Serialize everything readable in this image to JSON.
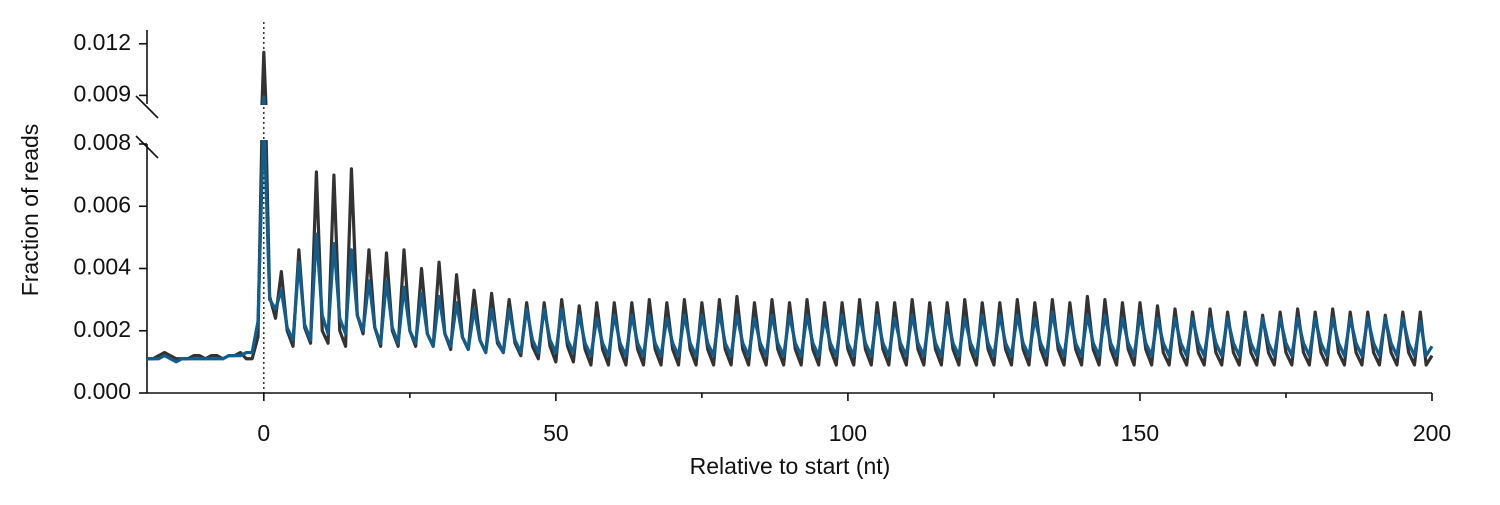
{
  "chart_data": {
    "type": "line",
    "xlabel": "Relative to start (nt)",
    "ylabel": "Fraction of reads",
    "x": [
      -20,
      -19,
      -18,
      -17,
      -16,
      -15,
      -14,
      -13,
      -12,
      -11,
      -10,
      -9,
      -8,
      -7,
      -6,
      -5,
      -4,
      -3,
      -2,
      -1,
      0,
      1,
      2,
      3,
      4,
      5,
      6,
      7,
      8,
      9,
      10,
      11,
      12,
      13,
      14,
      15,
      16,
      17,
      18,
      19,
      20,
      21,
      22,
      23,
      24,
      25,
      26,
      27,
      28,
      29,
      30,
      31,
      32,
      33,
      34,
      35,
      36,
      37,
      38,
      39,
      40,
      41,
      42,
      43,
      44,
      45,
      46,
      47,
      48,
      49,
      50,
      51,
      52,
      53,
      54,
      55,
      56,
      57,
      58,
      59,
      60,
      61,
      62,
      63,
      64,
      65,
      66,
      67,
      68,
      69,
      70,
      71,
      72,
      73,
      74,
      75,
      76,
      77,
      78,
      79,
      80,
      81,
      82,
      83,
      84,
      85,
      86,
      87,
      88,
      89,
      90,
      91,
      92,
      93,
      94,
      95,
      96,
      97,
      98,
      99,
      100,
      101,
      102,
      103,
      104,
      105,
      106,
      107,
      108,
      109,
      110,
      111,
      112,
      113,
      114,
      115,
      116,
      117,
      118,
      119,
      120,
      121,
      122,
      123,
      124,
      125,
      126,
      127,
      128,
      129,
      130,
      131,
      132,
      133,
      134,
      135,
      136,
      137,
      138,
      139,
      140,
      141,
      142,
      143,
      144,
      145,
      146,
      147,
      148,
      149,
      150,
      151,
      152,
      153,
      154,
      155,
      156,
      157,
      158,
      159,
      160,
      161,
      162,
      163,
      164,
      165,
      166,
      167,
      168,
      169,
      170,
      171,
      172,
      173,
      174,
      175,
      176,
      177,
      178,
      179,
      180,
      181,
      182,
      183,
      184,
      185,
      186,
      187,
      188,
      189,
      190,
      191,
      192,
      193,
      194,
      195,
      196,
      197,
      198,
      199,
      200
    ],
    "series": [
      {
        "color": "#333333",
        "values": [
          0.0011,
          0.0011,
          0.0012,
          0.0013,
          0.0012,
          0.0011,
          0.0011,
          0.0011,
          0.0012,
          0.0012,
          0.0011,
          0.0012,
          0.0012,
          0.0011,
          0.0012,
          0.0012,
          0.0013,
          0.0011,
          0.0011,
          0.0018,
          0.0115,
          0.0031,
          0.0024,
          0.0039,
          0.002,
          0.0015,
          0.0046,
          0.0021,
          0.0016,
          0.0071,
          0.002,
          0.0016,
          0.007,
          0.002,
          0.0015,
          0.0072,
          0.0025,
          0.0019,
          0.0046,
          0.0021,
          0.0015,
          0.0045,
          0.002,
          0.0015,
          0.0046,
          0.002,
          0.0015,
          0.004,
          0.0019,
          0.0015,
          0.0042,
          0.0019,
          0.0014,
          0.0038,
          0.0018,
          0.0014,
          0.0033,
          0.0017,
          0.0013,
          0.0032,
          0.0016,
          0.0013,
          0.003,
          0.0016,
          0.0012,
          0.0029,
          0.0015,
          0.0011,
          0.0029,
          0.0015,
          0.001,
          0.003,
          0.0015,
          0.001,
          0.0028,
          0.0014,
          0.0009,
          0.0029,
          0.0014,
          0.0009,
          0.0029,
          0.0014,
          0.0009,
          0.0029,
          0.0014,
          0.0009,
          0.003,
          0.0014,
          0.0009,
          0.0029,
          0.0014,
          0.0009,
          0.003,
          0.0014,
          0.0009,
          0.0029,
          0.0014,
          0.0009,
          0.003,
          0.0014,
          0.0009,
          0.0031,
          0.0014,
          0.0009,
          0.0029,
          0.0014,
          0.0009,
          0.003,
          0.0014,
          0.0009,
          0.0029,
          0.0014,
          0.0009,
          0.003,
          0.0014,
          0.0009,
          0.0029,
          0.0014,
          0.0009,
          0.0029,
          0.0014,
          0.0009,
          0.003,
          0.0014,
          0.0009,
          0.0029,
          0.0014,
          0.0009,
          0.0029,
          0.0014,
          0.0009,
          0.003,
          0.0014,
          0.0009,
          0.0029,
          0.0014,
          0.0009,
          0.0029,
          0.0014,
          0.0009,
          0.003,
          0.0014,
          0.0009,
          0.0029,
          0.0014,
          0.0009,
          0.0029,
          0.0014,
          0.0009,
          0.003,
          0.0014,
          0.0009,
          0.0029,
          0.0014,
          0.0009,
          0.003,
          0.0014,
          0.0009,
          0.0029,
          0.0014,
          0.0009,
          0.0031,
          0.0014,
          0.0009,
          0.003,
          0.0014,
          0.0009,
          0.0029,
          0.0014,
          0.0009,
          0.0029,
          0.0014,
          0.0009,
          0.0028,
          0.0013,
          0.0009,
          0.0027,
          0.0013,
          0.0009,
          0.0026,
          0.0013,
          0.0009,
          0.0027,
          0.0013,
          0.0009,
          0.0026,
          0.0013,
          0.0009,
          0.0026,
          0.0013,
          0.0009,
          0.0025,
          0.0013,
          0.0009,
          0.0026,
          0.0013,
          0.0009,
          0.0027,
          0.0013,
          0.0009,
          0.0026,
          0.0013,
          0.0009,
          0.0027,
          0.0013,
          0.0009,
          0.0026,
          0.0013,
          0.0009,
          0.0026,
          0.0013,
          0.0009,
          0.0025,
          0.0013,
          0.0009,
          0.0026,
          0.0013,
          0.0009,
          0.0026,
          0.0009,
          0.0012
        ]
      },
      {
        "color": "#135d8c",
        "values": [
          0.0011,
          0.0011,
          0.0011,
          0.0012,
          0.0011,
          0.001,
          0.0011,
          0.0011,
          0.0011,
          0.0011,
          0.0011,
          0.0011,
          0.0011,
          0.0011,
          0.0012,
          0.0012,
          0.0012,
          0.0013,
          0.0013,
          0.0023,
          0.0089,
          0.003,
          0.0027,
          0.0033,
          0.0021,
          0.0017,
          0.0042,
          0.0022,
          0.0017,
          0.0051,
          0.0025,
          0.0019,
          0.0048,
          0.0024,
          0.0019,
          0.0046,
          0.0025,
          0.002,
          0.0036,
          0.0021,
          0.0016,
          0.0036,
          0.0021,
          0.0016,
          0.0034,
          0.002,
          0.0016,
          0.0032,
          0.0019,
          0.0015,
          0.0031,
          0.0019,
          0.0015,
          0.0029,
          0.0018,
          0.0014,
          0.0027,
          0.0017,
          0.0013,
          0.0027,
          0.0017,
          0.0013,
          0.0027,
          0.0017,
          0.0013,
          0.0027,
          0.0017,
          0.0013,
          0.0027,
          0.0017,
          0.0013,
          0.0027,
          0.0017,
          0.0013,
          0.0025,
          0.0016,
          0.0012,
          0.0024,
          0.0016,
          0.0012,
          0.0025,
          0.0016,
          0.0012,
          0.0025,
          0.0016,
          0.0012,
          0.0025,
          0.0016,
          0.0012,
          0.0024,
          0.0016,
          0.0012,
          0.0025,
          0.0016,
          0.0012,
          0.0025,
          0.0016,
          0.0012,
          0.0026,
          0.0016,
          0.0012,
          0.0025,
          0.0016,
          0.0012,
          0.0024,
          0.0016,
          0.0012,
          0.0025,
          0.0016,
          0.0012,
          0.0025,
          0.0016,
          0.0012,
          0.0025,
          0.0016,
          0.0012,
          0.0024,
          0.0016,
          0.0012,
          0.0025,
          0.0016,
          0.0012,
          0.0025,
          0.0016,
          0.0012,
          0.0025,
          0.0016,
          0.0012,
          0.0024,
          0.0016,
          0.0012,
          0.0025,
          0.0016,
          0.0012,
          0.0025,
          0.0016,
          0.0012,
          0.0025,
          0.0016,
          0.0012,
          0.0024,
          0.0016,
          0.0012,
          0.0025,
          0.0016,
          0.0012,
          0.0025,
          0.0016,
          0.0012,
          0.0025,
          0.0016,
          0.0012,
          0.0024,
          0.0016,
          0.0012,
          0.0026,
          0.0016,
          0.0012,
          0.0025,
          0.0016,
          0.0012,
          0.0025,
          0.0016,
          0.0012,
          0.0025,
          0.0016,
          0.0012,
          0.0024,
          0.0016,
          0.0012,
          0.0025,
          0.0016,
          0.0012,
          0.0024,
          0.0016,
          0.0012,
          0.0024,
          0.0016,
          0.0012,
          0.0024,
          0.0016,
          0.0012,
          0.0024,
          0.0016,
          0.0012,
          0.0024,
          0.0016,
          0.0012,
          0.0024,
          0.0016,
          0.0012,
          0.0024,
          0.0016,
          0.0012,
          0.0024,
          0.0016,
          0.0012,
          0.0024,
          0.0016,
          0.0012,
          0.0024,
          0.0016,
          0.0012,
          0.0024,
          0.0016,
          0.0012,
          0.0024,
          0.0016,
          0.0012,
          0.0024,
          0.0016,
          0.0012,
          0.0024,
          0.0016,
          0.0012,
          0.0024,
          0.0016,
          0.0012,
          0.0023,
          0.0012,
          0.0015
        ]
      }
    ],
    "xlim": [
      -20,
      200
    ],
    "xticks": [
      0,
      50,
      100,
      150,
      200
    ],
    "xminor": [
      25,
      75,
      125,
      175
    ],
    "ylim": [
      0,
      0.008
    ],
    "yticks": [
      {
        "value": 0,
        "label": "0.000"
      },
      0.002,
      0.004,
      0.006,
      0.008
    ],
    "ybreak_lim": [
      0.0085,
      0.0128
    ],
    "ybreak_ticks": [
      0.009,
      0.012
    ],
    "vline": 0
  }
}
